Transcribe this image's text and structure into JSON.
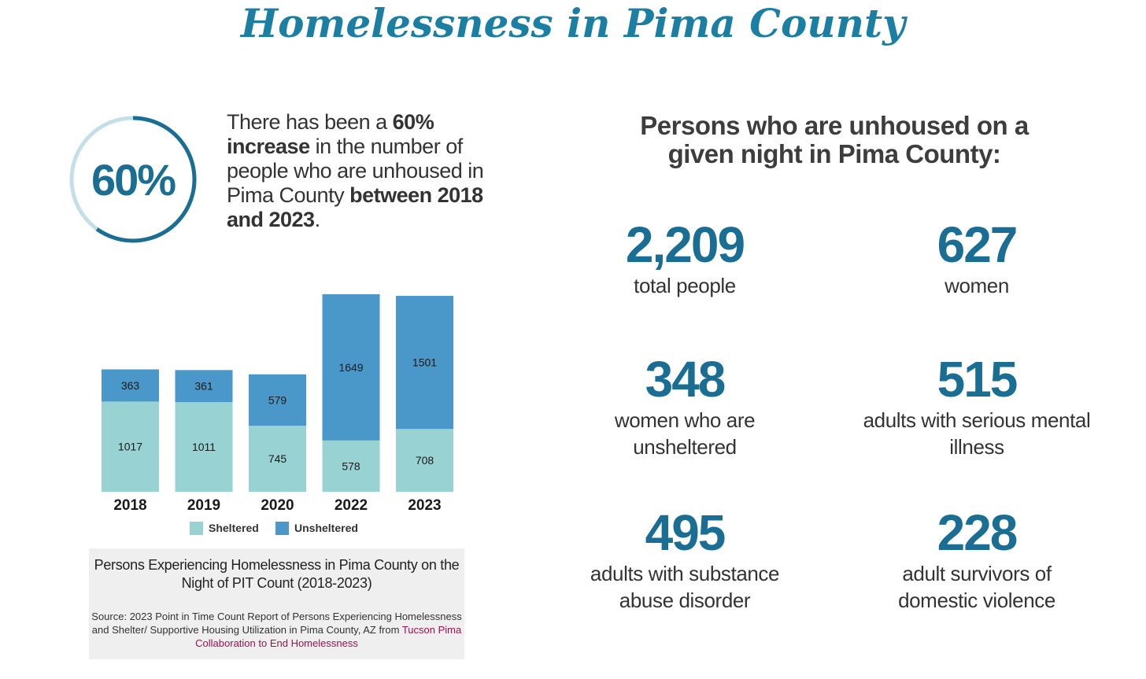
{
  "header": {
    "title": "Homelessness in Pima County"
  },
  "highlight": {
    "percent_label": "60%",
    "percent_value": 60,
    "text_parts": [
      {
        "text": "There has been a ",
        "bold": false
      },
      {
        "text": "60% increase",
        "bold": true
      },
      {
        "text": " in the number of people who are unhoused in Pima County ",
        "bold": false
      },
      {
        "text": "between 2018 and 2023",
        "bold": true
      },
      {
        "text": ".",
        "bold": false
      }
    ]
  },
  "chart_data": {
    "type": "bar",
    "stacked": true,
    "categories": [
      "2018",
      "2019",
      "2020",
      "2022",
      "2023"
    ],
    "series": [
      {
        "name": "Sheltered",
        "values": [
          1017,
          1011,
          745,
          578,
          708
        ],
        "color": "#98d2d3"
      },
      {
        "name": "Unsheltered",
        "values": [
          363,
          361,
          579,
          1649,
          1501
        ],
        "color": "#4a97c9"
      }
    ],
    "legend_position": "bottom-center",
    "grid": false
  },
  "caption": {
    "title": "Persons Experiencing Homelessness in Pima County on the Night of PIT Count (2018-2023)",
    "source_prefix": "Source: 2023 Point in Time Count Report of Persons Experiencing Homelessness and Shelter/ Supportive Housing Utilization in Pima County, AZ from ",
    "source_link": "Tucson Pima Collaboration to End Homelessness"
  },
  "right": {
    "heading_line1": "Persons who are unhoused on a",
    "heading_line2": "given night in Pima County:",
    "metrics": [
      {
        "value": "2,209",
        "label_line1": "total people",
        "label_line2": ""
      },
      {
        "value": "627",
        "label_line1": "women",
        "label_line2": ""
      },
      {
        "value": "348",
        "label_line1": "women who are",
        "label_line2": "unsheltered"
      },
      {
        "value": "515",
        "label_line1": "adults with serious mental",
        "label_line2": "illness"
      },
      {
        "value": "495",
        "label_line1": "adults with substance",
        "label_line2": "abuse disorder"
      },
      {
        "value": "228",
        "label_line1": "adult survivors of",
        "label_line2": "domestic violence"
      }
    ]
  },
  "colors": {
    "accent": "#1a6e93",
    "title": "#1a7fa2",
    "ring_light": "#c5dfe8",
    "ring_dark": "#1a6e93",
    "link": "#a01050"
  }
}
